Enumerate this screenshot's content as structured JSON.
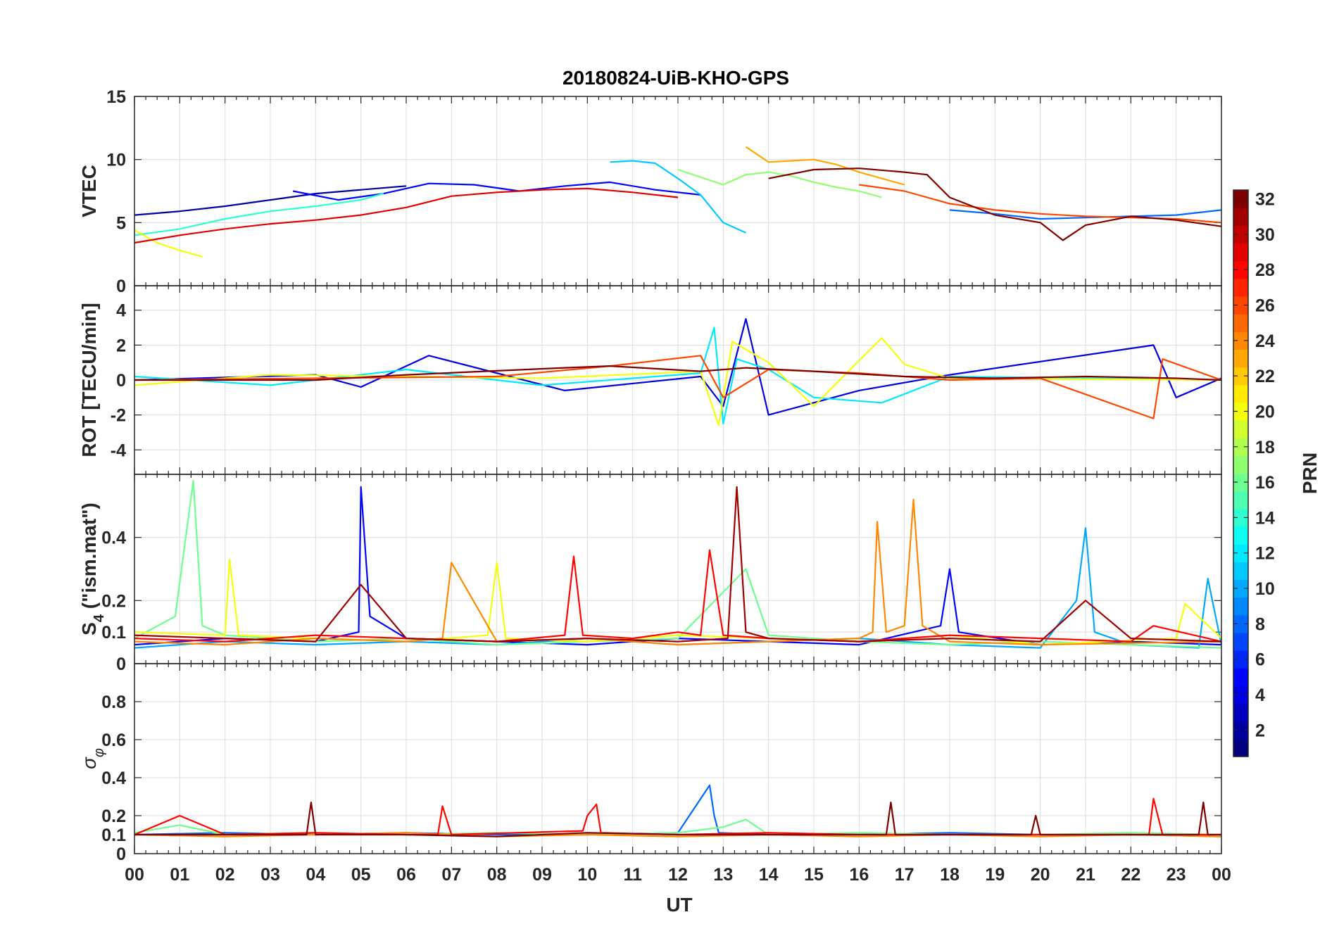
{
  "figure": {
    "title": "20180824-UiB-KHO-GPS",
    "xlabel": "UT"
  },
  "chart_data": [
    {
      "type": "line",
      "panel": "vtec",
      "ylabel": "VTEC",
      "ylim": [
        0,
        15
      ],
      "yticks": [
        0,
        5,
        10,
        15
      ],
      "ytick_labels": [
        "0",
        "5",
        "10",
        "15"
      ],
      "xlim": [
        0,
        24
      ],
      "xtick_labels": [
        "00",
        "01",
        "02",
        "03",
        "04",
        "05",
        "06",
        "07",
        "08",
        "09",
        "10",
        "11",
        "12",
        "13",
        "14",
        "15",
        "16",
        "17",
        "18",
        "19",
        "20",
        "21",
        "22",
        "23",
        "00"
      ],
      "grid": true,
      "series": [
        {
          "name": "PRN 2",
          "prn": 2,
          "x": [
            0,
            1,
            2,
            3,
            4,
            5,
            6
          ],
          "y": [
            5.6,
            5.9,
            6.3,
            6.8,
            7.3,
            7.6,
            7.9
          ]
        },
        {
          "name": "PRN 5",
          "prn": 5,
          "x": [
            3.5,
            4.5,
            5.5,
            6.5,
            7.5,
            8.5,
            9.5,
            10.5,
            11.5,
            12.5
          ],
          "y": [
            7.5,
            6.8,
            7.3,
            8.1,
            8.0,
            7.5,
            7.9,
            8.2,
            7.6,
            7.2
          ]
        },
        {
          "name": "PRN 8",
          "prn": 8,
          "x": [
            18,
            19,
            20,
            21,
            22,
            23,
            24
          ],
          "y": [
            6.0,
            5.7,
            5.3,
            5.4,
            5.5,
            5.6,
            6.0
          ]
        },
        {
          "name": "PRN 11",
          "prn": 11,
          "x": [
            10.5,
            11,
            11.5,
            12,
            12.5,
            13,
            13.5
          ],
          "y": [
            9.8,
            9.9,
            9.7,
            8.5,
            7.2,
            5.0,
            4.2
          ]
        },
        {
          "name": "PRN 14",
          "prn": 14,
          "x": [
            0,
            1,
            2,
            3,
            4,
            5,
            5.5
          ],
          "y": [
            4.0,
            4.5,
            5.3,
            5.9,
            6.3,
            6.8,
            7.3
          ]
        },
        {
          "name": "PRN 17",
          "prn": 17,
          "x": [
            12,
            12.5,
            13,
            13.5,
            14,
            14.5,
            15,
            15.5,
            16,
            16.5
          ],
          "y": [
            9.2,
            8.6,
            8.0,
            8.8,
            9.0,
            8.7,
            8.2,
            7.8,
            7.5,
            7.0
          ]
        },
        {
          "name": "PRN 20",
          "prn": 20,
          "x": [
            0,
            0.5,
            1,
            1.5
          ],
          "y": [
            4.4,
            3.4,
            2.8,
            2.3
          ]
        },
        {
          "name": "PRN 23",
          "prn": 23,
          "x": [
            13.5,
            14,
            14.5,
            15,
            15.5,
            16,
            16.5,
            17
          ],
          "y": [
            11.0,
            9.8,
            9.9,
            10.0,
            9.6,
            9.0,
            8.5,
            8.0
          ]
        },
        {
          "name": "PRN 26",
          "prn": 26,
          "x": [
            16,
            17,
            18,
            19,
            20,
            21,
            22,
            23,
            24
          ],
          "y": [
            8.0,
            7.5,
            6.5,
            6.0,
            5.7,
            5.5,
            5.4,
            5.3,
            5.0
          ]
        },
        {
          "name": "PRN 29",
          "prn": 29,
          "x": [
            0,
            1,
            2,
            3,
            4,
            5,
            6,
            7,
            8,
            9,
            10,
            11,
            12
          ],
          "y": [
            3.4,
            4.0,
            4.5,
            4.9,
            5.2,
            5.6,
            6.2,
            7.1,
            7.4,
            7.6,
            7.7,
            7.4,
            7.0
          ]
        },
        {
          "name": "PRN 32",
          "prn": 32,
          "x": [
            14,
            15,
            16,
            17,
            17.5,
            18,
            19,
            20,
            20.5,
            21,
            22,
            23,
            24
          ],
          "y": [
            8.5,
            9.2,
            9.3,
            9.0,
            8.8,
            7.0,
            5.6,
            5.0,
            3.6,
            4.8,
            5.5,
            5.2,
            4.7
          ]
        }
      ]
    },
    {
      "type": "line",
      "panel": "rot",
      "ylabel": "ROT [TECU/min]",
      "ylim": [
        -5.4,
        5.4
      ],
      "yticks": [
        -4,
        -2,
        0,
        2,
        4
      ],
      "ytick_labels": [
        "-4",
        "-2",
        "0",
        "2",
        "4"
      ],
      "xlim": [
        0,
        24
      ],
      "grid": true,
      "series": [
        {
          "name": "PRN 4",
          "prn": 4,
          "x": [
            0,
            4,
            5,
            6.5,
            9.5,
            12.5,
            13.0,
            13.5,
            14,
            16,
            18,
            22.5,
            23,
            24
          ],
          "y": [
            0,
            0.3,
            -0.4,
            1.4,
            -0.6,
            0.2,
            -1.5,
            3.5,
            -2.0,
            -0.6,
            0.3,
            2.0,
            -1.0,
            0.1
          ]
        },
        {
          "name": "PRN 12",
          "prn": 12,
          "x": [
            0,
            3,
            6,
            9,
            12.5,
            12.8,
            13.0,
            13.3,
            14,
            15,
            16.5,
            18,
            21,
            24
          ],
          "y": [
            0.2,
            -0.3,
            0.6,
            -0.3,
            0.4,
            3.0,
            -2.5,
            1.2,
            0.6,
            -1.0,
            -1.3,
            0.2,
            0.1,
            0.0
          ]
        },
        {
          "name": "PRN 20",
          "prn": 20,
          "x": [
            0,
            3,
            6,
            9,
            12.5,
            12.9,
            13.2,
            14,
            15,
            16.5,
            17,
            18,
            24
          ],
          "y": [
            -0.3,
            0.3,
            0.2,
            0.1,
            0.5,
            -2.6,
            2.2,
            1.0,
            -1.5,
            2.4,
            0.9,
            0.1,
            0.0
          ]
        },
        {
          "name": "PRN 26",
          "prn": 26,
          "x": [
            0,
            4,
            8,
            10.5,
            12.5,
            13,
            14,
            16,
            18,
            20,
            22.5,
            22.7,
            24
          ],
          "y": [
            0,
            0.1,
            0.2,
            0.8,
            1.4,
            -1.0,
            0.6,
            0.4,
            0.0,
            0.1,
            -2.2,
            1.2,
            0.0
          ]
        },
        {
          "name": "PRN 32",
          "prn": 32,
          "x": [
            0,
            4,
            6,
            9.5,
            10.5,
            12.5,
            13.5,
            15,
            17,
            19,
            21,
            23,
            24
          ],
          "y": [
            0,
            0.0,
            0.3,
            0.7,
            0.8,
            0.5,
            0.7,
            0.5,
            0.2,
            0.1,
            0.2,
            0.1,
            0.0
          ]
        }
      ]
    },
    {
      "type": "line",
      "panel": "s4",
      "ylabel": "S4 (\"ism.mat\")",
      "ylabel_main": "S",
      "ylabel_sub": "4",
      "ylabel_rest": " (\"ism.mat\")",
      "ylim": [
        0,
        0.6
      ],
      "yticks": [
        0,
        0.1,
        0.2,
        0.4
      ],
      "ytick_labels": [
        "0",
        "0.1",
        "0.2",
        "0.4"
      ],
      "xlim": [
        0,
        24
      ],
      "grid": true,
      "series": [
        {
          "name": "PRN 5",
          "prn": 5,
          "x": [
            0,
            2,
            4,
            4.95,
            5.0,
            5.2,
            6,
            8,
            10,
            12,
            14,
            16,
            17.8,
            18.0,
            18.2,
            20,
            22,
            24
          ],
          "y": [
            0.06,
            0.08,
            0.07,
            0.1,
            0.56,
            0.15,
            0.08,
            0.07,
            0.06,
            0.08,
            0.07,
            0.06,
            0.12,
            0.3,
            0.1,
            0.06,
            0.07,
            0.06
          ]
        },
        {
          "name": "PRN 10",
          "prn": 10,
          "x": [
            0,
            2,
            4,
            6,
            8,
            10,
            12,
            14,
            16,
            18,
            20,
            20.8,
            21.0,
            21.2,
            22,
            23.5,
            23.7,
            24
          ],
          "y": [
            0.05,
            0.07,
            0.06,
            0.07,
            0.06,
            0.08,
            0.06,
            0.07,
            0.08,
            0.06,
            0.05,
            0.2,
            0.43,
            0.1,
            0.06,
            0.05,
            0.27,
            0.06
          ]
        },
        {
          "name": "PRN 16",
          "prn": 16,
          "x": [
            0,
            0.9,
            1.3,
            1.5,
            2,
            4,
            6,
            8,
            10,
            12,
            13.5,
            14,
            16,
            18,
            20,
            22,
            24
          ],
          "y": [
            0.08,
            0.15,
            0.58,
            0.12,
            0.09,
            0.07,
            0.08,
            0.06,
            0.07,
            0.08,
            0.3,
            0.09,
            0.07,
            0.06,
            0.07,
            0.06,
            0.05
          ]
        },
        {
          "name": "PRN 20",
          "prn": 20,
          "x": [
            0,
            2,
            2.1,
            2.3,
            4,
            6,
            7.8,
            8.0,
            8.2,
            10,
            12,
            14,
            16,
            18,
            20,
            23,
            23.2,
            24
          ],
          "y": [
            0.1,
            0.09,
            0.33,
            0.09,
            0.08,
            0.07,
            0.09,
            0.32,
            0.08,
            0.07,
            0.09,
            0.08,
            0.07,
            0.09,
            0.06,
            0.08,
            0.19,
            0.08
          ]
        },
        {
          "name": "PRN 24",
          "prn": 24,
          "x": [
            0,
            2,
            4,
            6,
            6.8,
            7.0,
            8,
            10,
            12,
            14,
            16,
            16.3,
            16.4,
            16.6,
            17.0,
            17.2,
            17.4,
            18,
            20,
            24
          ],
          "y": [
            0.07,
            0.06,
            0.08,
            0.07,
            0.08,
            0.32,
            0.07,
            0.08,
            0.06,
            0.07,
            0.08,
            0.1,
            0.45,
            0.1,
            0.12,
            0.52,
            0.12,
            0.07,
            0.06,
            0.07
          ]
        },
        {
          "name": "PRN 28",
          "prn": 28,
          "x": [
            0,
            2,
            4,
            6,
            8,
            9.5,
            9.7,
            9.9,
            11,
            12,
            12.5,
            12.7,
            13,
            14,
            16,
            18,
            20,
            22,
            22.5,
            24
          ],
          "y": [
            0.08,
            0.07,
            0.09,
            0.08,
            0.07,
            0.09,
            0.34,
            0.09,
            0.08,
            0.1,
            0.09,
            0.36,
            0.09,
            0.08,
            0.07,
            0.09,
            0.08,
            0.07,
            0.12,
            0.07
          ]
        },
        {
          "name": "PRN 31",
          "prn": 31,
          "x": [
            0,
            2,
            4,
            5,
            6,
            8,
            10,
            12,
            13.1,
            13.3,
            13.5,
            14,
            16,
            18,
            20,
            21,
            22,
            24
          ],
          "y": [
            0.09,
            0.08,
            0.07,
            0.25,
            0.08,
            0.07,
            0.08,
            0.07,
            0.08,
            0.56,
            0.1,
            0.08,
            0.07,
            0.08,
            0.07,
            0.2,
            0.08,
            0.07
          ]
        }
      ]
    },
    {
      "type": "line",
      "panel": "sigma_phi",
      "ylabel": "σφ",
      "ylabel_main": "σ",
      "ylabel_sub": "φ",
      "ylim": [
        0,
        1
      ],
      "yticks": [
        0,
        0.1,
        0.2,
        0.4,
        0.6,
        0.8
      ],
      "ytick_labels": [
        "0",
        "0.1",
        "0.2",
        "0.4",
        "0.6",
        "0.8"
      ],
      "xlim": [
        0,
        24
      ],
      "grid": true,
      "series": [
        {
          "name": "PRN 8",
          "prn": 8,
          "x": [
            0,
            2,
            4,
            6,
            8,
            10,
            12,
            12.7,
            12.8,
            12.9,
            14,
            16,
            18,
            20,
            22,
            24
          ],
          "y": [
            0.1,
            0.11,
            0.1,
            0.11,
            0.1,
            0.1,
            0.11,
            0.36,
            0.2,
            0.11,
            0.1,
            0.1,
            0.11,
            0.1,
            0.1,
            0.09
          ]
        },
        {
          "name": "PRN 16",
          "prn": 16,
          "x": [
            0,
            1,
            2,
            4,
            6,
            8,
            10,
            12,
            13,
            13.5,
            14,
            16,
            18,
            20,
            22,
            24
          ],
          "y": [
            0.11,
            0.15,
            0.1,
            0.11,
            0.1,
            0.11,
            0.1,
            0.11,
            0.14,
            0.18,
            0.1,
            0.11,
            0.1,
            0.1,
            0.11,
            0.1
          ]
        },
        {
          "name": "PRN 24",
          "prn": 24,
          "x": [
            0,
            2,
            4,
            6,
            8,
            10,
            12,
            14,
            16,
            18,
            20,
            22,
            24
          ],
          "y": [
            0.1,
            0.09,
            0.1,
            0.11,
            0.09,
            0.1,
            0.09,
            0.1,
            0.09,
            0.1,
            0.09,
            0.1,
            0.09
          ]
        },
        {
          "name": "PRN 28",
          "prn": 28,
          "x": [
            0,
            1,
            2,
            4,
            6,
            6.7,
            6.8,
            7,
            9.9,
            10.0,
            10.2,
            10.3,
            12,
            14,
            16,
            18,
            20,
            22.4,
            22.5,
            22.7,
            24
          ],
          "y": [
            0.1,
            0.2,
            0.1,
            0.11,
            0.1,
            0.1,
            0.25,
            0.1,
            0.12,
            0.2,
            0.26,
            0.11,
            0.1,
            0.11,
            0.1,
            0.1,
            0.1,
            0.1,
            0.29,
            0.1,
            0.1
          ]
        },
        {
          "name": "PRN 32",
          "prn": 32,
          "x": [
            0,
            2,
            3.8,
            3.9,
            4.0,
            6,
            8,
            10,
            12,
            14,
            16,
            16.6,
            16.7,
            16.8,
            18,
            19.8,
            19.9,
            20,
            22,
            23.5,
            23.6,
            23.7,
            24
          ],
          "y": [
            0.1,
            0.1,
            0.1,
            0.27,
            0.1,
            0.1,
            0.09,
            0.11,
            0.1,
            0.1,
            0.1,
            0.1,
            0.27,
            0.1,
            0.1,
            0.1,
            0.2,
            0.1,
            0.1,
            0.1,
            0.27,
            0.1,
            0.1
          ]
        }
      ]
    }
  ],
  "colorbar": {
    "label": "PRN",
    "min": 1,
    "max": 32,
    "ticks": [
      2,
      4,
      6,
      8,
      10,
      12,
      14,
      16,
      18,
      20,
      22,
      24,
      26,
      28,
      30,
      32
    ],
    "tick_labels": [
      "2",
      "4",
      "6",
      "8",
      "10",
      "12",
      "14",
      "16",
      "18",
      "20",
      "22",
      "24",
      "26",
      "28",
      "30",
      "32"
    ],
    "colormap": "jet"
  }
}
